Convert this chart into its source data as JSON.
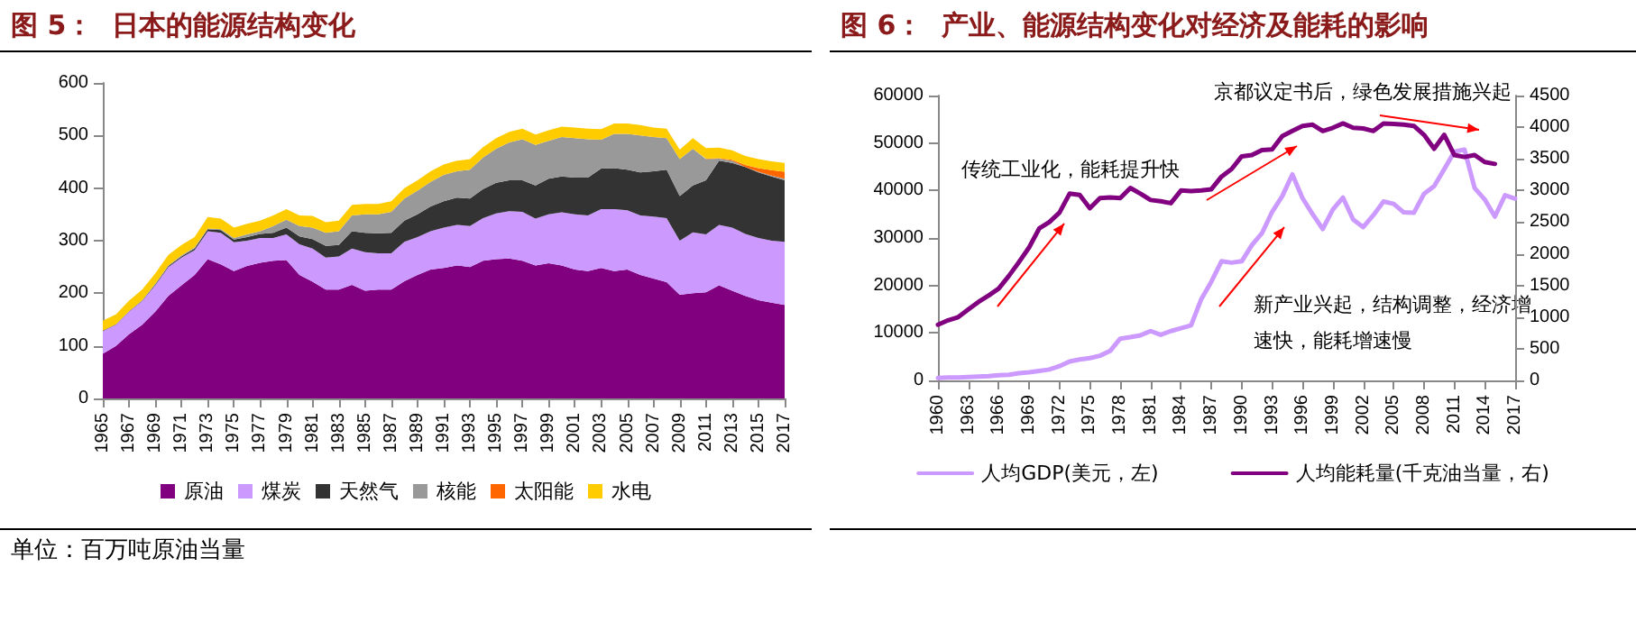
{
  "chart_data": [
    {
      "type": "area",
      "title": "图 5：  日本的能源结构变化",
      "stacked": true,
      "legend": "bottom",
      "grid": false,
      "categories": [
        "1965",
        null,
        "1967",
        null,
        "1969",
        null,
        "1971",
        null,
        "1973",
        null,
        "1975",
        null,
        "1977",
        null,
        "1979",
        null,
        "1981",
        null,
        "1983",
        null,
        "1985",
        null,
        "1987",
        null,
        "1989",
        null,
        "1991",
        null,
        "1993",
        null,
        "1995",
        null,
        "1997",
        null,
        "1999",
        null,
        "2001",
        null,
        "2003",
        null,
        "2005",
        null,
        "2007",
        null,
        "2009",
        null,
        "2011",
        null,
        "2013",
        null,
        "2015",
        null,
        "2017"
      ],
      "ylim": [
        0,
        600
      ],
      "yticks": [
        0,
        100,
        200,
        300,
        400,
        500,
        600
      ],
      "annotations": [
        "单位：百万吨原油当量"
      ],
      "series": [
        {
          "name": "原油",
          "color": "#800080",
          "values": [
            85,
            100,
            122,
            140,
            165,
            195,
            215,
            235,
            265,
            255,
            242,
            252,
            258,
            262,
            263,
            235,
            222,
            207,
            207,
            216,
            205,
            207,
            207,
            223,
            235,
            245,
            248,
            253,
            250,
            262,
            265,
            266,
            262,
            253,
            257,
            253,
            245,
            242,
            248,
            242,
            245,
            235,
            228,
            221,
            197,
            200,
            202,
            215,
            205,
            195,
            187,
            182,
            178
          ]
        },
        {
          "name": "煤炭",
          "color": "#cc99ff",
          "values": [
            43,
            40,
            43,
            45,
            50,
            55,
            53,
            47,
            53,
            60,
            55,
            48,
            47,
            43,
            49,
            58,
            63,
            61,
            63,
            69,
            73,
            69,
            69,
            75,
            72,
            73,
            77,
            77,
            78,
            81,
            87,
            90,
            93,
            89,
            93,
            101,
            105,
            106,
            112,
            118,
            113,
            113,
            118,
            122,
            103,
            116,
            110,
            115,
            120,
            118,
            118,
            118,
            120
          ]
        },
        {
          "name": "天然气",
          "color": "#333333",
          "values": [
            1,
            1,
            1,
            1,
            2,
            2,
            2,
            3,
            4,
            5,
            5,
            7,
            8,
            10,
            13,
            15,
            18,
            22,
            22,
            33,
            37,
            38,
            39,
            40,
            43,
            47,
            50,
            52,
            52,
            55,
            58,
            59,
            60,
            63,
            68,
            68,
            70,
            72,
            77,
            78,
            77,
            82,
            86,
            92,
            85,
            89,
            103,
            122,
            123,
            127,
            125,
            122,
            117
          ]
        },
        {
          "name": "核能",
          "color": "#999999",
          "values": [
            0,
            0,
            0,
            1,
            1,
            1,
            2,
            2,
            1,
            2,
            3,
            5,
            5,
            13,
            15,
            20,
            22,
            25,
            26,
            30,
            35,
            36,
            40,
            42,
            45,
            47,
            50,
            50,
            55,
            60,
            65,
            72,
            78,
            77,
            72,
            75,
            75,
            73,
            55,
            65,
            68,
            70,
            65,
            60,
            70,
            70,
            40,
            4,
            4,
            0,
            1,
            2,
            3
          ]
        },
        {
          "name": "太阳能",
          "color": "#ff6600",
          "values": [
            null,
            null,
            null,
            null,
            null,
            null,
            null,
            null,
            null,
            null,
            null,
            null,
            null,
            null,
            null,
            null,
            null,
            null,
            null,
            null,
            null,
            null,
            null,
            null,
            null,
            null,
            null,
            null,
            null,
            null,
            null,
            null,
            null,
            null,
            null,
            null,
            null,
            null,
            null,
            null,
            null,
            null,
            null,
            null,
            null,
            null,
            1,
            1,
            2,
            4,
            7,
            10,
            13
          ]
        },
        {
          "name": "水电",
          "color": "#ffcc00",
          "values": [
            19,
            19,
            20,
            20,
            20,
            20,
            20,
            20,
            22,
            20,
            20,
            20,
            20,
            20,
            20,
            20,
            22,
            20,
            20,
            20,
            20,
            20,
            20,
            20,
            20,
            20,
            20,
            20,
            20,
            20,
            20,
            20,
            20,
            20,
            20,
            20,
            20,
            20,
            20,
            20,
            20,
            20,
            18,
            18,
            18,
            20,
            20,
            20,
            18,
            17,
            17,
            17,
            17
          ]
        }
      ]
    },
    {
      "type": "line",
      "title": "图 6：  产业、能源结构变化对经济及能耗的影响",
      "legend": "bottom",
      "grid": false,
      "categories": [
        "1960",
        null,
        null,
        "1963",
        null,
        null,
        "1966",
        null,
        null,
        "1969",
        null,
        null,
        "1972",
        null,
        null,
        "1975",
        null,
        null,
        "1978",
        null,
        null,
        "1981",
        null,
        null,
        "1984",
        null,
        null,
        "1987",
        null,
        null,
        "1990",
        null,
        null,
        "1993",
        null,
        null,
        "1996",
        null,
        null,
        "1999",
        null,
        null,
        "2002",
        null,
        null,
        "2005",
        null,
        null,
        "2008",
        null,
        null,
        "2011",
        null,
        null,
        "2014",
        null,
        null,
        "2017"
      ],
      "ylim": [
        0,
        60000
      ],
      "yticks": [
        0,
        10000,
        20000,
        30000,
        40000,
        50000,
        60000
      ],
      "y2lim": [
        0,
        4500
      ],
      "y2ticks": [
        0,
        500,
        1000,
        1500,
        2000,
        2500,
        3000,
        3500,
        4000,
        4500
      ],
      "annotations": [
        "京都议定书后，绿色发展措施兴起",
        "传统工业化，能耗提升快",
        "新产业兴起，结构调整，经济增速快，能耗增速慢"
      ],
      "series": [
        {
          "name": "人均GDP(美元，左)",
          "color": "#cc99ff",
          "values": [
            500,
            600,
            600,
            700,
            800,
            900,
            1100,
            1200,
            1500,
            1700,
            2000,
            2300,
            3000,
            4000,
            4400,
            4700,
            5200,
            6200,
            8800,
            9100,
            9500,
            10400,
            9600,
            10400,
            11000,
            11600,
            17100,
            20800,
            25100,
            24800,
            25100,
            28500,
            31000,
            35500,
            38800,
            43400,
            38400,
            35000,
            31900,
            36000,
            38500,
            33900,
            32300,
            34800,
            37700,
            37200,
            35400,
            35300,
            39300,
            40900,
            44500,
            48200,
            48600,
            40500,
            38100,
            34500,
            39000,
            38300
          ]
        },
        {
          "name": "人均能耗量(千克油当量，右)",
          "color": "#800080",
          "axis": "y2",
          "values": [
            880,
            950,
            1000,
            1120,
            1240,
            1340,
            1450,
            1650,
            1870,
            2100,
            2400,
            2500,
            2650,
            2950,
            2930,
            2720,
            2880,
            2890,
            2880,
            3040,
            2950,
            2850,
            2830,
            2800,
            3000,
            2990,
            3000,
            3020,
            3220,
            3340,
            3540,
            3560,
            3640,
            3650,
            3860,
            3940,
            4020,
            4040,
            3940,
            3990,
            4060,
            3990,
            3980,
            3940,
            4060,
            4050,
            4040,
            4020,
            3880,
            3660,
            3880,
            3560,
            3530,
            3560,
            3450,
            3420,
            null,
            null
          ]
        }
      ]
    }
  ]
}
